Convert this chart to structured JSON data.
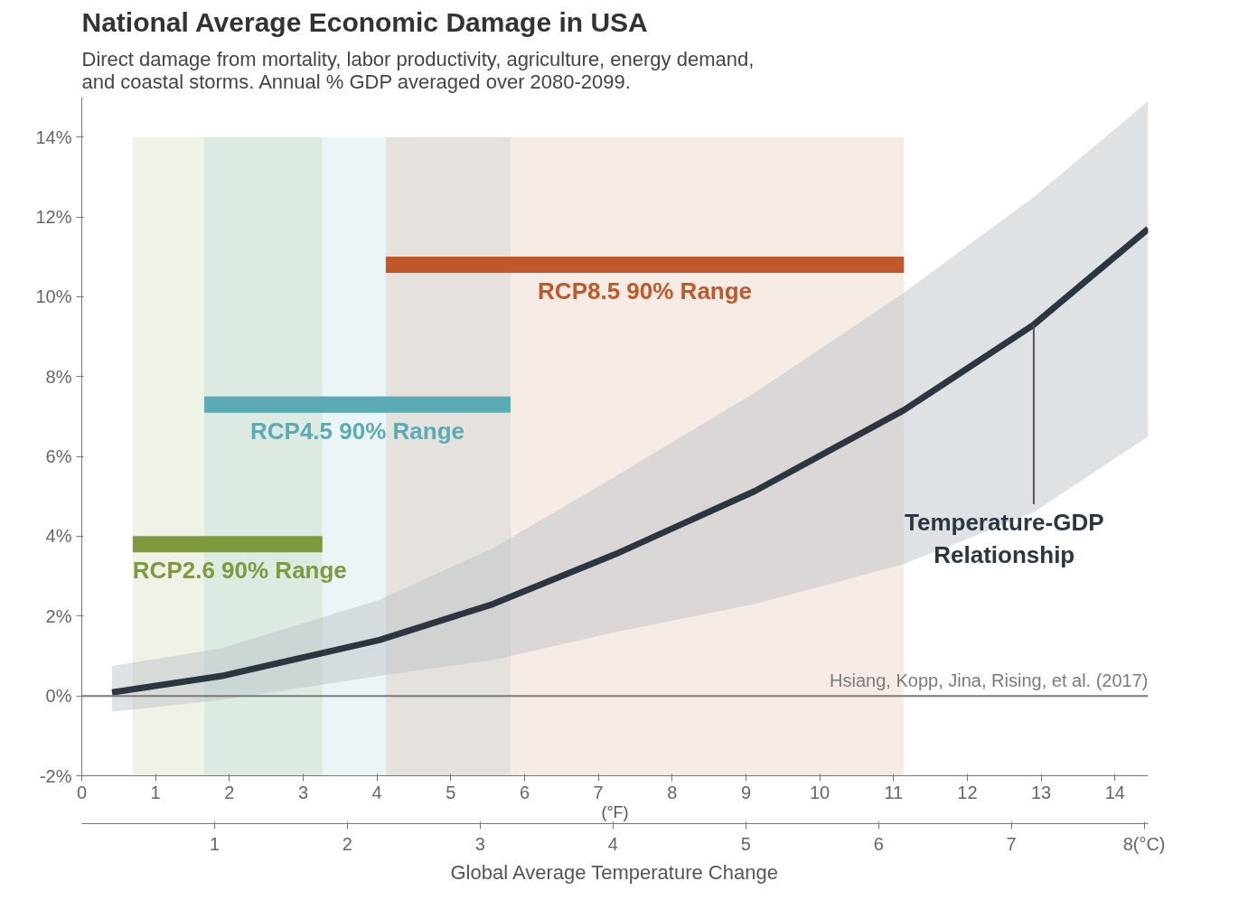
{
  "chart_data": {
    "type": "line",
    "title": "National Average Economic Damage in USA",
    "subtitle": "Direct damage from mortality, labor productivity, agriculture, energy demand, and coastal storms. Annual % GDP averaged over 2080-2099.",
    "xlabel": "Global Average Temperature Change",
    "xlim": [
      0,
      14.45
    ],
    "xticks": [
      0,
      1,
      2,
      3,
      4,
      5,
      6,
      7,
      8,
      9,
      10,
      11,
      12,
      13,
      14
    ],
    "x2lim": [
      0,
      8.03
    ],
    "x2ticks": [
      1,
      2,
      3,
      4,
      5,
      6,
      7,
      {
        "value": 8,
        "label": "8(°C)"
      }
    ],
    "ylim": [
      -2,
      15
    ],
    "yticks": [
      {
        "value": -2,
        "label": "-2%"
      },
      {
        "value": 0,
        "label": "0%"
      },
      {
        "value": 2,
        "label": "2%"
      },
      {
        "value": 4,
        "label": "4%"
      },
      {
        "value": 6,
        "label": "6%"
      },
      {
        "value": 8,
        "label": "8%"
      },
      {
        "value": 10,
        "label": "10%"
      },
      {
        "value": 12,
        "label": "12%"
      },
      {
        "value": 14,
        "label": "14%"
      }
    ],
    "series": [
      {
        "name": "Temperature-GDP Relationship",
        "color": "#2b3640",
        "x": [
          0.41,
          1.9,
          4.03,
          5.57,
          7.23,
          9.12,
          11.14,
          12.9,
          14.45
        ],
        "values": [
          0.09,
          0.5,
          1.4,
          2.3,
          3.55,
          5.13,
          7.16,
          9.3,
          11.7
        ],
        "lower": [
          -0.4,
          -0.1,
          0.5,
          0.9,
          1.6,
          2.3,
          3.3,
          4.6,
          6.5
        ],
        "upper": [
          0.75,
          1.2,
          2.4,
          3.7,
          5.5,
          7.6,
          10.1,
          12.5,
          14.9
        ]
      },
      {
        "name": "RCP2.6 90% Range",
        "color": "#7f9a3c",
        "x": [
          0.69,
          3.26
        ],
        "values": [
          3.8,
          3.8
        ]
      },
      {
        "name": "RCP4.5 90% Range",
        "color": "#5aabb5",
        "x": [
          1.66,
          5.81
        ],
        "values": [
          7.3,
          7.3
        ]
      },
      {
        "name": "RCP8.5 90% Range",
        "color": "#c0582a",
        "x": [
          4.12,
          11.14
        ],
        "values": [
          10.8,
          10.8
        ]
      }
    ],
    "bands": [
      {
        "axis": "x",
        "from": 0.69,
        "to": 3.26,
        "color": "#7f9a3c"
      },
      {
        "axis": "x",
        "from": 1.66,
        "to": 5.81,
        "color": "#5aabb5"
      },
      {
        "axis": "x",
        "from": 4.12,
        "to": 11.14,
        "color": "#c0582a"
      }
    ],
    "ref_lines": [
      {
        "axis": "y",
        "value": 0,
        "label": "Hsiang, Kopp, Jina, Rising, et al. (2017)",
        "color": "#7a7a7a"
      }
    ],
    "annotations": [
      "(°F)"
    ],
    "grid": false,
    "legend": false
  }
}
